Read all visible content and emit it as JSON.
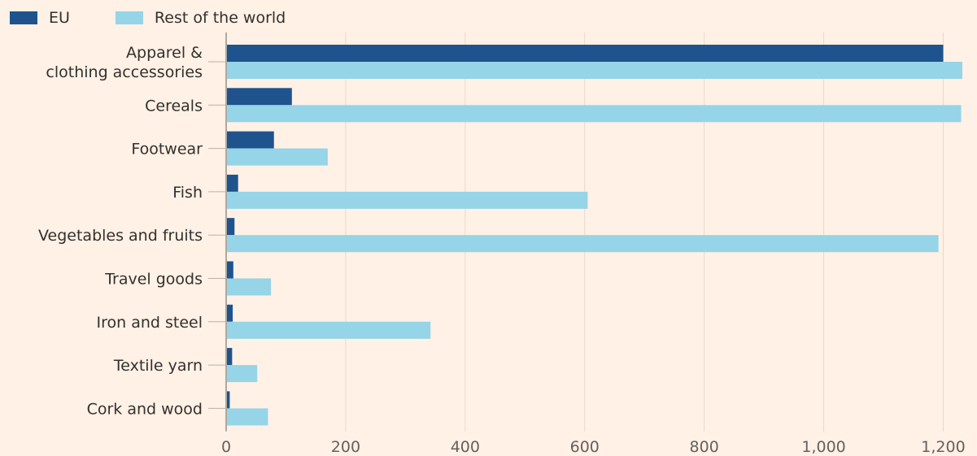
{
  "chart_data": {
    "type": "bar",
    "orientation": "horizontal",
    "title": "",
    "xlabel": "",
    "ylabel": "",
    "categories": [
      "Apparel & clothing accessories",
      "Cereals",
      "Footwear",
      "Fish",
      "Vegetables and fruits",
      "Travel goods",
      "Iron and steel",
      "Textile yarn",
      "Cork and wood"
    ],
    "category_label_lines": [
      [
        "Apparel &",
        "clothing accessories"
      ],
      [
        "Cereals"
      ],
      [
        "Footwear"
      ],
      [
        "Fish"
      ],
      [
        "Vegetables and fruits"
      ],
      [
        "Travel goods"
      ],
      [
        "Iron and steel"
      ],
      [
        "Textile yarn"
      ],
      [
        "Cork and wood"
      ]
    ],
    "series": [
      {
        "name": "EU",
        "color": "#1f538d",
        "values": [
          1200,
          110,
          80,
          20,
          14,
          12,
          11,
          10,
          6
        ]
      },
      {
        "name": "Rest of the world",
        "color": "#96d4e7",
        "values": [
          1232,
          1230,
          170,
          605,
          1192,
          75,
          342,
          52,
          70
        ]
      }
    ],
    "xlim": [
      0,
      1232
    ],
    "xticks": [
      0,
      200,
      400,
      600,
      800,
      1000,
      1200
    ],
    "xtick_labels": [
      "0",
      "200",
      "400",
      "600",
      "800",
      "1,000",
      "1,200"
    ],
    "grid": "vertical",
    "legend_position": "top-left"
  }
}
